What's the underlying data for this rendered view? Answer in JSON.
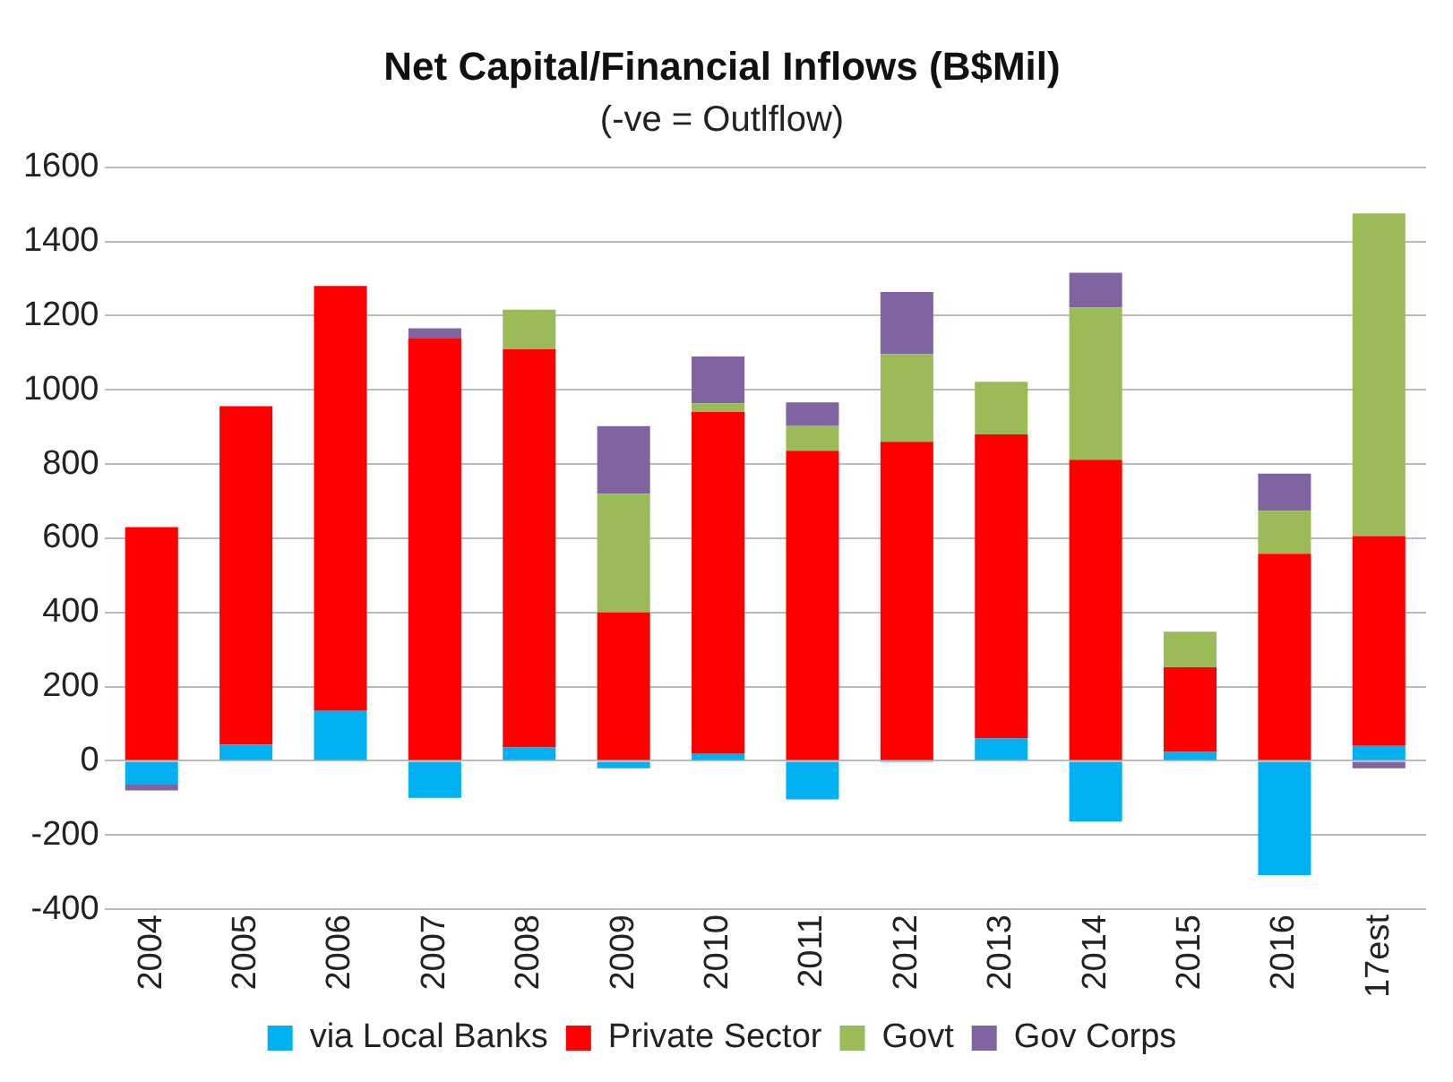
{
  "chart_data": {
    "type": "bar",
    "title": "Net Capital/Financial Inflows (B$Mil)",
    "subtitle": "(-ve = Outlflow)",
    "categories": [
      "2004",
      "2005",
      "2006",
      "2007",
      "2008",
      "2009",
      "2010",
      "2011",
      "2012",
      "2013",
      "2014",
      "2015",
      "2016",
      "17est"
    ],
    "stacked": true,
    "series": [
      {
        "name": "via Local Banks",
        "color": "#00b0f0",
        "values": [
          -64,
          44,
          136,
          -100,
          36,
          -20,
          20,
          -104,
          -4,
          60,
          -164,
          24,
          -308,
          40
        ]
      },
      {
        "name": "Private Sector",
        "color": "#ff0000",
        "values": [
          630,
          912,
          1144,
          1140,
          1074,
          400,
          920,
          836,
          860,
          820,
          812,
          228,
          558,
          566
        ]
      },
      {
        "name": "Govt",
        "color": "#9bbb59",
        "values": [
          0,
          0,
          0,
          0,
          106,
          320,
          24,
          68,
          236,
          142,
          410,
          96,
          116,
          870
        ]
      },
      {
        "name": "Gov Corps",
        "color": "#8064a2",
        "values": [
          -16,
          0,
          0,
          26,
          0,
          182,
          126,
          62,
          168,
          0,
          94,
          0,
          100,
          -20
        ]
      }
    ],
    "ylim": [
      -400,
      1600
    ],
    "yticks": [
      -400,
      -200,
      0,
      200,
      400,
      600,
      800,
      1000,
      1200,
      1400,
      1600
    ],
    "grid": "y",
    "legend": "bottom"
  }
}
